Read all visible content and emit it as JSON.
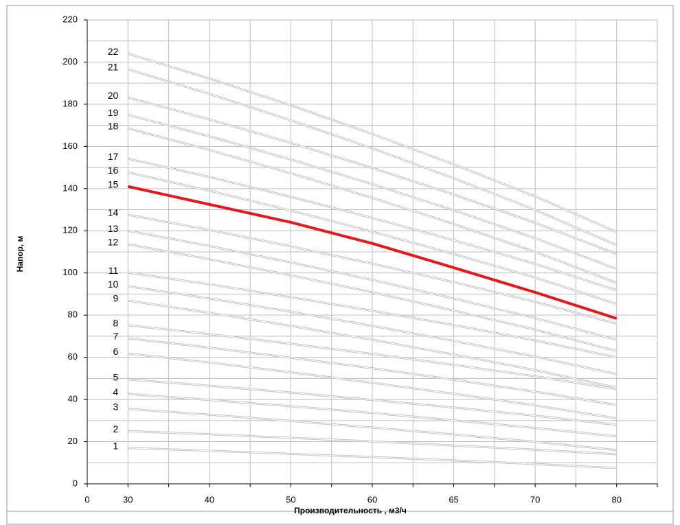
{
  "chart_data": {
    "type": "line",
    "x_label": "Производительность , м3/ч",
    "y_label": "Напор, м",
    "categories": [
      "0",
      "30",
      "40",
      "50",
      "60",
      "65",
      "70",
      "80"
    ],
    "ylim": [
      0,
      220
    ],
    "yticks": [
      0,
      20,
      40,
      60,
      80,
      100,
      120,
      140,
      160,
      180,
      200,
      220
    ],
    "grid": true,
    "series": [
      {
        "name": "1",
        "color": "#c4c4c4",
        "values": [
          null,
          17,
          15.7,
          14.2,
          12.7,
          11.1,
          9.4,
          7.5
        ]
      },
      {
        "name": "2",
        "color": "#c4c4c4",
        "values": [
          null,
          25,
          23.5,
          21.8,
          20.1,
          18.2,
          16.2,
          14
        ]
      },
      {
        "name": "3",
        "color": "#c4c4c4",
        "values": [
          null,
          35.5,
          32.8,
          29.8,
          26.7,
          23.4,
          19.9,
          16
        ]
      },
      {
        "name": "4",
        "color": "#c4c4c4",
        "values": [
          null,
          42.6,
          39.8,
          36.8,
          33.6,
          30.1,
          26.5,
          22.5
        ]
      },
      {
        "name": "5",
        "color": "#c4c4c4",
        "values": [
          null,
          49.5,
          46.5,
          43.3,
          39.8,
          36.2,
          32.3,
          28
        ]
      },
      {
        "name": "6",
        "color": "#c4c4c4",
        "values": [
          null,
          61.8,
          57.5,
          52.9,
          47.9,
          42.7,
          37.2,
          31
        ]
      },
      {
        "name": "7",
        "color": "#c4c4c4",
        "values": [
          null,
          69,
          64.6,
          59.8,
          54.8,
          49.4,
          43.7,
          37.4
        ]
      },
      {
        "name": "8",
        "color": "#c4c4c4",
        "values": [
          null,
          75.2,
          71,
          66.4,
          61.6,
          56.4,
          51,
          44.9
        ]
      },
      {
        "name": "9",
        "color": "#c4c4c4",
        "values": [
          null,
          86.9,
          81.1,
          74.9,
          68.3,
          61.3,
          53.9,
          45.6
        ]
      },
      {
        "name": "10",
        "color": "#c4c4c4",
        "values": [
          null,
          93.7,
          87.9,
          81.6,
          74.9,
          67.8,
          60.3,
          52
        ]
      },
      {
        "name": "11",
        "color": "#c4c4c4",
        "values": [
          null,
          100.2,
          94.6,
          88.5,
          82.1,
          75.3,
          68,
          60
        ]
      },
      {
        "name": "12",
        "color": "#c4c4c4",
        "values": [
          null,
          113.6,
          106.5,
          98.9,
          90.8,
          82.2,
          73.1,
          63
        ]
      },
      {
        "name": "13",
        "color": "#c4c4c4",
        "values": [
          null,
          120,
          112.8,
          105,
          96.7,
          87.9,
          78.6,
          68.3
        ]
      },
      {
        "name": "14",
        "color": "#c4c4c4",
        "values": [
          null,
          127.6,
          120.4,
          112.6,
          104.4,
          95.6,
          86.3,
          76
        ]
      },
      {
        "name": "15",
        "color": "#e3191c",
        "values": [
          null,
          141,
          132.5,
          124,
          114,
          102.5,
          90.8,
          78.4
        ]
      },
      {
        "name": "16",
        "color": "#c4c4c4",
        "values": [
          null,
          147.7,
          139,
          129.6,
          119.6,
          109,
          97.8,
          85.3
        ]
      },
      {
        "name": "17",
        "color": "#c4c4c4",
        "values": [
          null,
          154.2,
          145.5,
          136.1,
          126.1,
          115.5,
          104.3,
          91.8
        ]
      },
      {
        "name": "18",
        "color": "#c4c4c4",
        "values": [
          null,
          168.6,
          158.3,
          147.3,
          135.6,
          123.2,
          110,
          95.3
        ]
      },
      {
        "name": "19",
        "color": "#c4c4c4",
        "values": [
          null,
          175,
          164.8,
          153.8,
          142.1,
          129.7,
          116.5,
          101.9
        ]
      },
      {
        "name": "20",
        "color": "#c4c4c4",
        "values": [
          null,
          183.2,
          172.8,
          161.7,
          149.8,
          137.2,
          123.8,
          109
        ]
      },
      {
        "name": "21",
        "color": "#c4c4c4",
        "values": [
          null,
          196.6,
          184.9,
          172.4,
          159.1,
          144.9,
          129.9,
          113.2
        ]
      },
      {
        "name": "22",
        "color": "#c4c4c4",
        "values": [
          null,
          204,
          192.2,
          179.5,
          165.9,
          151.5,
          136.3,
          119.4
        ]
      }
    ]
  }
}
